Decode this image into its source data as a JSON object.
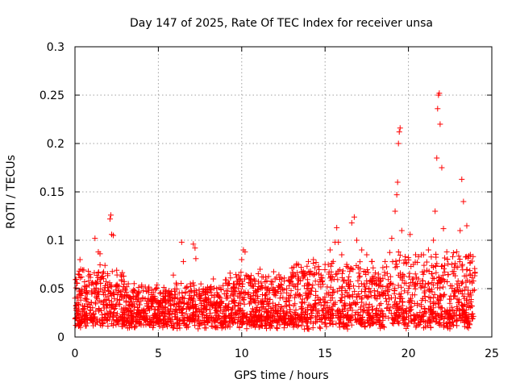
{
  "chart_data": {
    "type": "scatter",
    "title": "Day 147 of 2025, Rate Of TEC Index for receiver unsa",
    "xlabel": "GPS time / hours",
    "ylabel": "ROTI / TECUs",
    "xlim": [
      0,
      25
    ],
    "ylim": [
      0,
      0.3
    ],
    "x_ticks": [
      "0",
      "5",
      "10",
      "15",
      "20",
      "25"
    ],
    "y_ticks": [
      "0",
      "0.05",
      "0.1",
      "0.15",
      "0.2",
      "0.25",
      "0.3"
    ],
    "grid": true,
    "legend": "none",
    "marker": "plus",
    "color": "#ff0000",
    "series": [
      {
        "points": [
          [
            0.05,
            0.012
          ],
          [
            0.1,
            0.03
          ],
          [
            0.2,
            0.065
          ],
          [
            0.3,
            0.08
          ],
          [
            0.4,
            0.062
          ],
          [
            0.6,
            0.04
          ],
          [
            0.8,
            0.068
          ],
          [
            1.0,
            0.055
          ],
          [
            1.2,
            0.102
          ],
          [
            1.4,
            0.088
          ],
          [
            1.5,
            0.086
          ],
          [
            1.6,
            0.062
          ],
          [
            1.8,
            0.074
          ],
          [
            2.1,
            0.122
          ],
          [
            2.15,
            0.126
          ],
          [
            2.2,
            0.106
          ],
          [
            2.3,
            0.105
          ],
          [
            2.5,
            0.069
          ],
          [
            2.8,
            0.058
          ],
          [
            3.0,
            0.05
          ],
          [
            3.2,
            0.055
          ],
          [
            3.5,
            0.042
          ],
          [
            3.8,
            0.045
          ],
          [
            4.0,
            0.052
          ],
          [
            4.4,
            0.04
          ],
          [
            4.7,
            0.046
          ],
          [
            5.0,
            0.036
          ],
          [
            5.3,
            0.03
          ],
          [
            5.6,
            0.038
          ],
          [
            5.9,
            0.064
          ],
          [
            6.1,
            0.054
          ],
          [
            6.4,
            0.098
          ],
          [
            6.5,
            0.078
          ],
          [
            6.8,
            0.035
          ],
          [
            7.1,
            0.096
          ],
          [
            7.2,
            0.092
          ],
          [
            7.25,
            0.081
          ],
          [
            7.5,
            0.038
          ],
          [
            8.0,
            0.04
          ],
          [
            8.3,
            0.06
          ],
          [
            8.5,
            0.05
          ],
          [
            8.8,
            0.037
          ],
          [
            9.3,
            0.066
          ],
          [
            9.5,
            0.055
          ],
          [
            9.8,
            0.05
          ],
          [
            10.0,
            0.08
          ],
          [
            10.1,
            0.09
          ],
          [
            10.2,
            0.088
          ],
          [
            10.5,
            0.06
          ],
          [
            10.8,
            0.055
          ],
          [
            11.1,
            0.07
          ],
          [
            11.3,
            0.062
          ],
          [
            11.6,
            0.05
          ],
          [
            12.0,
            0.06
          ],
          [
            12.4,
            0.06
          ],
          [
            12.7,
            0.05
          ],
          [
            13.0,
            0.062
          ],
          [
            13.4,
            0.075
          ],
          [
            13.7,
            0.068
          ],
          [
            14.0,
            0.078
          ],
          [
            14.3,
            0.08
          ],
          [
            14.6,
            0.073
          ],
          [
            15.0,
            0.075
          ],
          [
            15.3,
            0.09
          ],
          [
            15.6,
            0.098
          ],
          [
            15.7,
            0.113
          ],
          [
            15.8,
            0.098
          ],
          [
            16.0,
            0.085
          ],
          [
            16.3,
            0.075
          ],
          [
            16.6,
            0.118
          ],
          [
            16.75,
            0.124
          ],
          [
            16.9,
            0.1
          ],
          [
            17.2,
            0.09
          ],
          [
            17.5,
            0.085
          ],
          [
            17.8,
            0.078
          ],
          [
            18.2,
            0.065
          ],
          [
            18.6,
            0.078
          ],
          [
            19.0,
            0.102
          ],
          [
            19.2,
            0.13
          ],
          [
            19.3,
            0.147
          ],
          [
            19.35,
            0.16
          ],
          [
            19.4,
            0.2
          ],
          [
            19.45,
            0.212
          ],
          [
            19.5,
            0.216
          ],
          [
            19.6,
            0.11
          ],
          [
            19.8,
            0.083
          ],
          [
            20.0,
            0.082
          ],
          [
            20.1,
            0.106
          ],
          [
            20.3,
            0.075
          ],
          [
            20.6,
            0.06
          ],
          [
            20.9,
            0.085
          ],
          [
            21.2,
            0.09
          ],
          [
            21.5,
            0.1
          ],
          [
            21.6,
            0.13
          ],
          [
            21.7,
            0.185
          ],
          [
            21.75,
            0.236
          ],
          [
            21.8,
            0.25
          ],
          [
            21.85,
            0.252
          ],
          [
            21.9,
            0.22
          ],
          [
            22.0,
            0.175
          ],
          [
            22.1,
            0.112
          ],
          [
            22.3,
            0.088
          ],
          [
            22.6,
            0.075
          ],
          [
            22.9,
            0.088
          ],
          [
            23.1,
            0.11
          ],
          [
            23.2,
            0.163
          ],
          [
            23.3,
            0.14
          ],
          [
            23.5,
            0.115
          ],
          [
            23.7,
            0.065
          ],
          [
            23.9,
            0.058
          ]
        ]
      }
    ]
  }
}
